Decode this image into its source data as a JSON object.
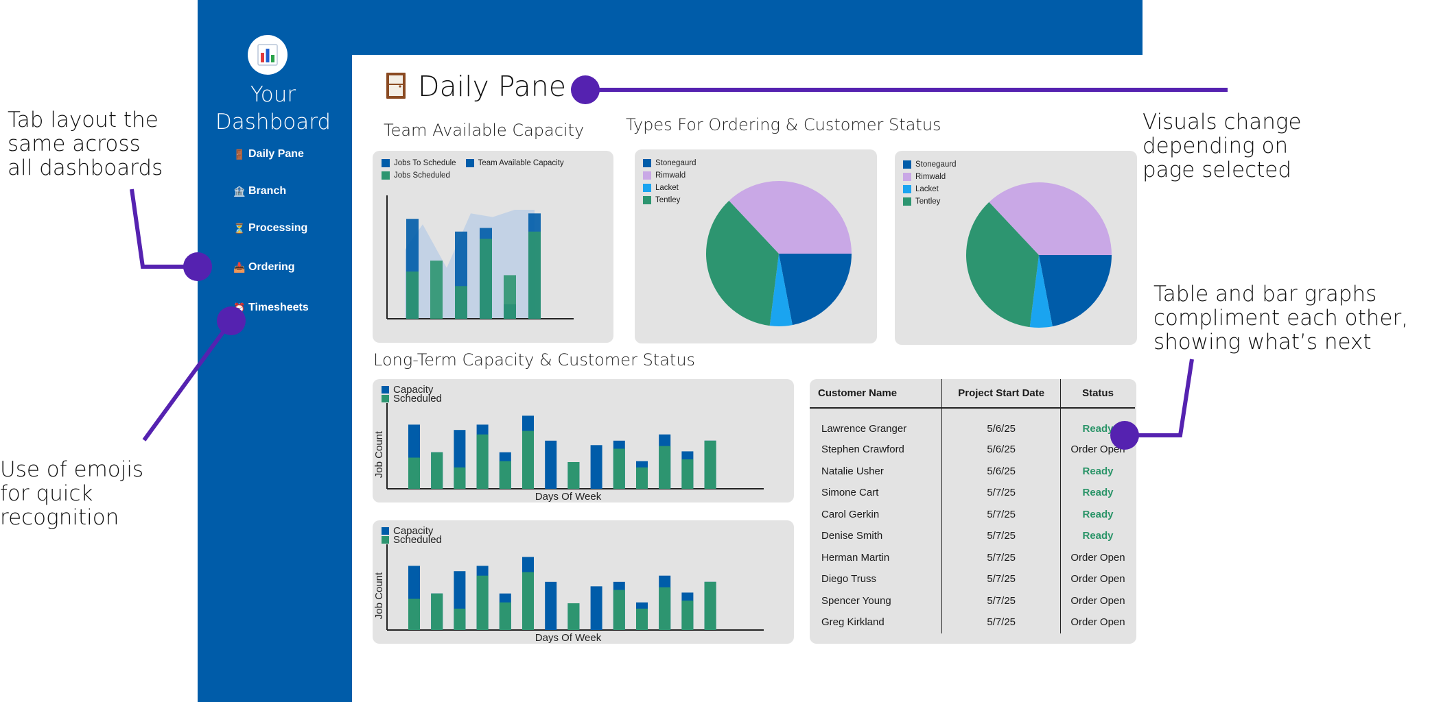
{
  "sidebar": {
    "title_line1": "Your",
    "title_line2": "Dashboard",
    "logo_icon": "bar-chart-icon",
    "items": [
      {
        "label": "Daily Pane",
        "icon": "🚪"
      },
      {
        "label": "Branch",
        "icon": "🏦"
      },
      {
        "label": "Processing",
        "icon": "⏳"
      },
      {
        "label": "Ordering",
        "icon": "📥"
      },
      {
        "label": "Timesheets",
        "icon": "⏰"
      }
    ]
  },
  "page": {
    "title": "Daily Pane",
    "icon": "door-icon"
  },
  "sections": {
    "capacity": "Team Available Capacity",
    "types": "Types For Ordering & Customer Status",
    "long_term": "Long-Term Capacity & Customer Status"
  },
  "colors": {
    "blue": "#005ca9",
    "green": "#2d9570",
    "purple": "#c9a8e6",
    "light_blue": "#1aa4f0",
    "accent": "#5522b0"
  },
  "chart_data": [
    {
      "type": "bar",
      "series": [
        {
          "name": "Jobs To Schedule",
          "values": [
            55,
            0,
            48,
            50,
            8,
            58
          ]
        },
        {
          "name": "Team Available Capacity",
          "values": [
            46,
            53,
            55,
            55,
            43,
            58
          ]
        },
        {
          "name": "Jobs Scheduled",
          "values": [
            26,
            32,
            18,
            44,
            24,
            48
          ]
        }
      ]
    },
    {
      "type": "pie",
      "series": [
        {
          "name": "",
          "values": [
            {
              "label": "Stonegaurd",
              "value": 22
            },
            {
              "label": "Rimwald",
              "value": 37
            },
            {
              "label": "Lacket",
              "value": 5
            },
            {
              "label": "Tentley",
              "value": 36
            }
          ]
        }
      ]
    },
    {
      "type": "pie",
      "series": [
        {
          "name": "",
          "values": [
            {
              "label": "Stonegaurd",
              "value": 22
            },
            {
              "label": "Rimwald",
              "value": 37
            },
            {
              "label": "Lacket",
              "value": 5
            },
            {
              "label": "Tentley",
              "value": 36
            }
          ]
        }
      ]
    },
    {
      "type": "bar",
      "xlabel": "Days Of Week",
      "ylabel": "Job Count",
      "series": [
        {
          "name": "Capacity",
          "values": [
            72,
            41,
            66,
            72,
            41,
            82,
            54,
            30,
            49,
            54,
            31,
            61,
            42,
            54
          ]
        },
        {
          "name": "Scheduled",
          "values": [
            35,
            41,
            24,
            61,
            31,
            65,
            0,
            30,
            0,
            45,
            24,
            48,
            33,
            54
          ]
        }
      ]
    },
    {
      "type": "bar",
      "xlabel": "Days Of Week",
      "ylabel": "Job Count",
      "series": [
        {
          "name": "Capacity",
          "values": [
            72,
            41,
            66,
            72,
            41,
            82,
            54,
            30,
            49,
            54,
            31,
            61,
            42,
            54
          ]
        },
        {
          "name": "Scheduled",
          "values": [
            35,
            41,
            24,
            61,
            31,
            65,
            0,
            30,
            0,
            45,
            24,
            48,
            33,
            54
          ]
        }
      ]
    }
  ],
  "table": {
    "headers": [
      "Customer Name",
      "Project Start Date",
      "Status"
    ],
    "rows": [
      [
        "Lawrence Granger",
        "5/6/25",
        "Ready"
      ],
      [
        "Stephen Crawford",
        "5/6/25",
        "Order Open"
      ],
      [
        "Natalie Usher",
        "5/6/25",
        "Ready"
      ],
      [
        "Simone Cart",
        "5/7/25",
        "Ready"
      ],
      [
        "Carol Gerkin",
        "5/7/25",
        "Ready"
      ],
      [
        "Denise Smith",
        "5/7/25",
        "Ready"
      ],
      [
        "Herman Martin",
        "5/7/25",
        "Order Open"
      ],
      [
        "Diego Truss",
        "5/7/25",
        "Order Open"
      ],
      [
        "Spencer Young",
        "5/7/25",
        "Order Open"
      ],
      [
        "Greg Kirkland",
        "5/7/25",
        "Order Open"
      ]
    ]
  },
  "annotations": {
    "tabs": [
      "Tab layout the",
      "same across",
      "all dashboards"
    ],
    "emojis": [
      "Use of emojis",
      "for quick",
      "recognition"
    ],
    "visuals": [
      "Visuals change",
      "depending on",
      "page selected"
    ],
    "table": [
      "Table and bar graphs",
      "compliment each other,",
      "showing what’s next"
    ]
  }
}
